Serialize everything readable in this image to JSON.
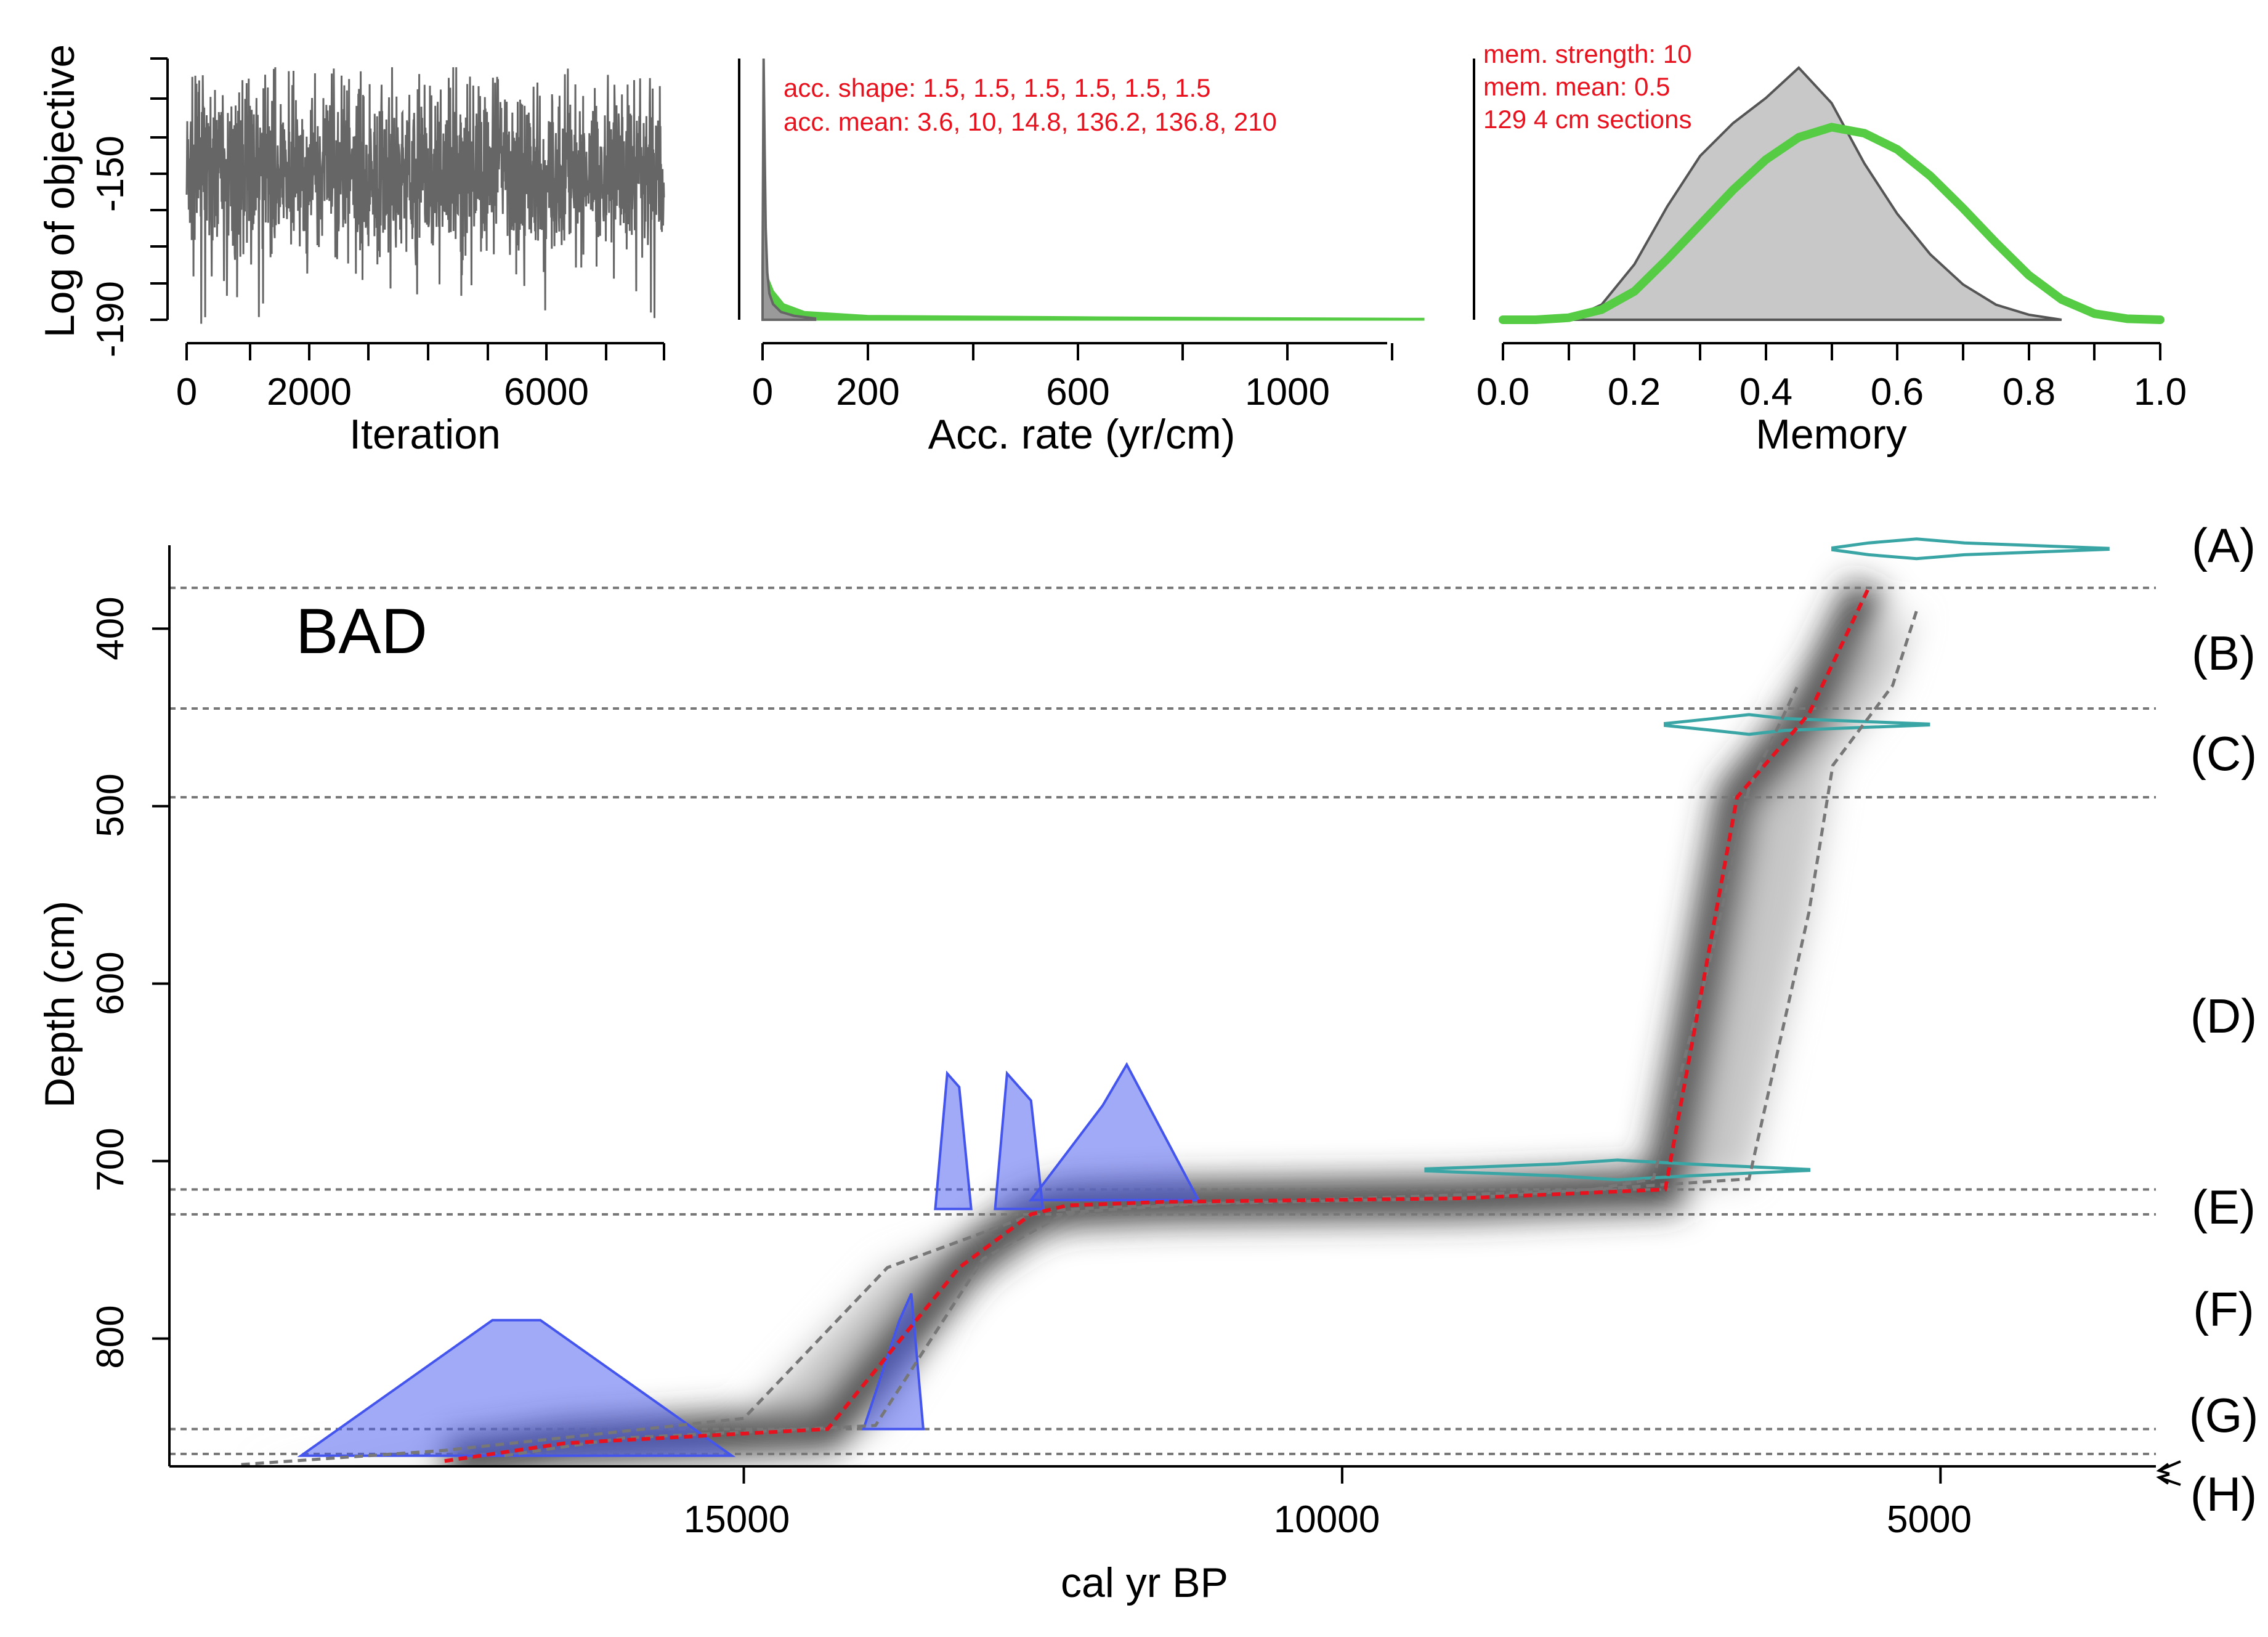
{
  "chart_data": [
    {
      "type": "line",
      "panel": "iteration",
      "xlabel": "Iteration",
      "ylabel": "Log of objective",
      "xticks": [
        "0",
        "2000",
        "6000"
      ],
      "yticks": [
        "-150",
        "-190"
      ],
      "xlim": [
        0,
        8000
      ],
      "ylim": [
        -190,
        -130
      ],
      "series": [
        {
          "color": "#666666",
          "summary": {
            "mean": -156,
            "spread": 14,
            "min": -191,
            "max": -132
          }
        }
      ]
    },
    {
      "type": "area",
      "panel": "acc-rate",
      "xlabel": "Acc. rate (yr/cm)",
      "xticks": [
        "0",
        "200",
        "600",
        "1000"
      ],
      "xlim": [
        0,
        1260
      ],
      "annotations": [
        "acc. shape: 1.5, 1.5, 1.5, 1.5, 1.5, 1.5",
        "acc. mean: 3.6, 10, 14.8, 136.2, 136.8, 210"
      ],
      "series": [
        {
          "role": "posterior",
          "color": "#666666",
          "x": [
            0,
            2,
            4,
            6,
            9,
            13,
            20,
            35,
            60,
            100
          ],
          "y": [
            0.2,
            1.0,
            0.65,
            0.35,
            0.18,
            0.1,
            0.06,
            0.03,
            0.015,
            0.005
          ]
        },
        {
          "role": "prior",
          "color": "#55cc44",
          "x": [
            0,
            10,
            20,
            40,
            80,
            200,
            600,
            1000,
            1260
          ],
          "y": [
            0.05,
            0.16,
            0.11,
            0.06,
            0.03,
            0.015,
            0.01,
            0.006,
            0.004
          ]
        }
      ]
    },
    {
      "type": "area",
      "panel": "memory",
      "xlabel": "Memory",
      "xticks": [
        "0.0",
        "0.2",
        "0.4",
        "0.6",
        "0.8",
        "1.0"
      ],
      "xlim": [
        0,
        1
      ],
      "annotations": [
        "mem. strength: 10",
        "mem. mean: 0.5",
        "129 4 cm sections"
      ],
      "series": [
        {
          "role": "posterior",
          "color": "#666666",
          "x": [
            0.1,
            0.15,
            0.2,
            0.25,
            0.3,
            0.35,
            0.4,
            0.45,
            0.5,
            0.55,
            0.6,
            0.65,
            0.7,
            0.75,
            0.8,
            0.85
          ],
          "y": [
            0.0,
            0.06,
            0.22,
            0.45,
            0.65,
            0.78,
            0.88,
            1.0,
            0.86,
            0.62,
            0.42,
            0.26,
            0.14,
            0.06,
            0.02,
            0.0
          ]
        },
        {
          "role": "prior",
          "color": "#55cc44",
          "x": [
            0,
            0.05,
            0.1,
            0.15,
            0.2,
            0.25,
            0.3,
            0.35,
            0.4,
            0.45,
            0.5,
            0.55,
            0.6,
            0.65,
            0.7,
            0.75,
            0.8,
            0.85,
            0.9,
            0.95,
            1.0
          ],
          "y": [
            0.0,
            0.0,
            0.01,
            0.05,
            0.14,
            0.3,
            0.47,
            0.64,
            0.79,
            0.9,
            0.95,
            0.92,
            0.84,
            0.71,
            0.55,
            0.38,
            0.22,
            0.1,
            0.03,
            0.005,
            0.0
          ]
        }
      ]
    },
    {
      "type": "line",
      "panel": "age-depth",
      "title": "BAD",
      "xlabel": "cal yr BP",
      "ylabel": "Depth (cm)",
      "xticks": [
        "15000",
        "10000",
        "5000"
      ],
      "yticks": [
        "400",
        "500",
        "600",
        "700",
        "800"
      ],
      "xlim": [
        19800,
        3200
      ],
      "ylim": [
        872,
        353
      ],
      "zones": [
        {
          "label": "(A)",
          "depth": 353
        },
        {
          "label": "(B)",
          "depth": 414
        },
        {
          "label": "(C)",
          "depth": 470
        },
        {
          "label": "(D)",
          "depth": 622
        },
        {
          "label": "(E)",
          "depth": 722
        },
        {
          "label": "(F)",
          "depth": 790
        },
        {
          "label": "(G)",
          "depth": 843
        },
        {
          "label": "(H)",
          "depth": 877
        }
      ],
      "boundaries": [
        377,
        445,
        495,
        716,
        730,
        851,
        865
      ],
      "arrow_labels": [
        "(G)",
        "(H)"
      ],
      "series": [
        {
          "name": "",
          "role": "mean",
          "color": "#e8121e",
          "x": [
            17500,
            16500,
            14300,
            13200,
            12600,
            12300,
            11500,
            9000,
            7300,
            6700,
            6100,
            5600
          ],
          "y": [
            869,
            859,
            851,
            760,
            730,
            725,
            723,
            721,
            716,
            495,
            448,
            377
          ]
        },
        {
          "name": "",
          "role": "ci-upper",
          "color": "#777777",
          "x": [
            19200,
            17500,
            15000,
            13800,
            12500,
            11300,
            9000,
            7900,
            7400,
            6900,
            6600,
            6200
          ],
          "y": [
            871,
            863,
            845,
            760,
            728,
            724,
            719,
            716,
            710,
            580,
            490,
            433
          ]
        },
        {
          "name": "",
          "role": "ci-lower",
          "color": "#777777",
          "x": [
            17000,
            16000,
            13900,
            13000,
            12300,
            11200,
            9000,
            6600,
            6100,
            5900,
            5400,
            5200
          ],
          "y": [
            866,
            856,
            849,
            755,
            729,
            724,
            721,
            710,
            560,
            477,
            432,
            390
          ]
        }
      ],
      "dates": [
        {
          "kind": "calendar",
          "color": "#3aa5a5",
          "depth": 355,
          "x": [
            5900,
            5600,
            5200,
            4800,
            3600
          ],
          "y": [
            0.1,
            0.6,
            1.0,
            0.6,
            0.05
          ]
        },
        {
          "kind": "calendar",
          "color": "#3aa5a5",
          "depth": 454,
          "x": [
            7300,
            6900,
            6600,
            6300,
            5100
          ],
          "y": [
            0.1,
            0.6,
            1.0,
            0.6,
            0.05
          ]
        },
        {
          "kind": "calendar",
          "color": "#3aa5a5",
          "depth": 705,
          "x": [
            9300,
            8200,
            7700,
            7100,
            6100
          ],
          "y": [
            0.1,
            0.6,
            1.0,
            0.6,
            0.05
          ]
        },
        {
          "kind": "radiocarbon",
          "color": "#4455ee",
          "depth": 851,
          "x": [
            14000,
            13700,
            13600,
            13500
          ],
          "y": [
            0.0,
            0.8,
            1.0,
            0.0
          ]
        },
        {
          "kind": "radiocarbon",
          "color": "#4455ee",
          "depth": 727,
          "x": [
            13400,
            13300,
            13200,
            13100
          ],
          "y": [
            0.0,
            1.0,
            0.9,
            0.0
          ]
        },
        {
          "kind": "radiocarbon",
          "color": "#4455ee",
          "depth": 727,
          "x": [
            12900,
            12800,
            12600,
            12500
          ],
          "y": [
            0.0,
            1.0,
            0.8,
            0.0
          ]
        },
        {
          "kind": "radiocarbon",
          "color": "#4455ee",
          "depth": 722,
          "x": [
            12600,
            12000,
            11800,
            11200
          ],
          "y": [
            0.0,
            0.7,
            1.0,
            0.0
          ]
        },
        {
          "kind": "radiocarbon",
          "color": "#4455ee",
          "depth": 866,
          "x": [
            18700,
            17100,
            16700,
            15100
          ],
          "y": [
            0.0,
            1.0,
            1.0,
            0.0
          ]
        }
      ]
    }
  ]
}
